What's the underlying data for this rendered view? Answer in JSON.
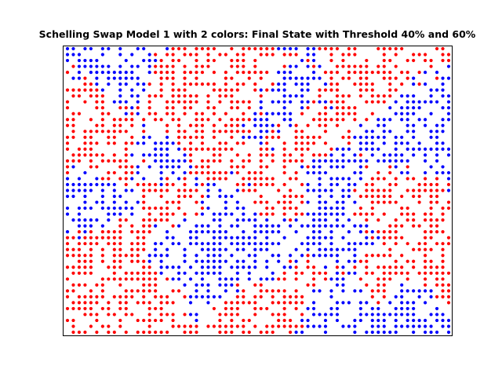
{
  "chart_data": {
    "type": "scatter",
    "title": "Schelling Swap Model 1 with 2 colors: Final State with Threshold 40% and 60%",
    "xlabel": "",
    "ylabel": "",
    "xlim": [
      0,
      1
    ],
    "ylim": [
      0,
      1
    ],
    "grid": false,
    "axes_ticks": false,
    "grid_size": [
      66,
      49
    ],
    "series": [
      {
        "color": "#ff0000",
        "density": 0.3,
        "clusters": [
          [
            0.05,
            0.78
          ],
          [
            0.12,
            0.3
          ],
          [
            0.28,
            0.82
          ],
          [
            0.35,
            0.66
          ],
          [
            0.46,
            0.88
          ],
          [
            0.62,
            0.72
          ],
          [
            0.78,
            0.88
          ],
          [
            0.83,
            0.46
          ],
          [
            0.96,
            0.26
          ],
          [
            0.26,
            0.46
          ],
          [
            0.55,
            0.5
          ],
          [
            0.2,
            0.1
          ],
          [
            0.46,
            0.08
          ],
          [
            0.62,
            0.18
          ],
          [
            0.83,
            0.2
          ],
          [
            0.12,
            0.62
          ]
        ]
      },
      {
        "color": "#0000ff",
        "density": 0.28,
        "clusters": [
          [
            0.14,
            0.9
          ],
          [
            0.26,
            0.62
          ],
          [
            0.42,
            0.4
          ],
          [
            0.55,
            0.3
          ],
          [
            0.7,
            0.52
          ],
          [
            0.88,
            0.7
          ],
          [
            0.7,
            0.12
          ],
          [
            0.88,
            0.1
          ],
          [
            0.1,
            0.46
          ],
          [
            0.4,
            0.18
          ],
          [
            0.58,
            0.8
          ],
          [
            0.7,
            0.34
          ],
          [
            0.3,
            0.3
          ]
        ]
      }
    ]
  }
}
